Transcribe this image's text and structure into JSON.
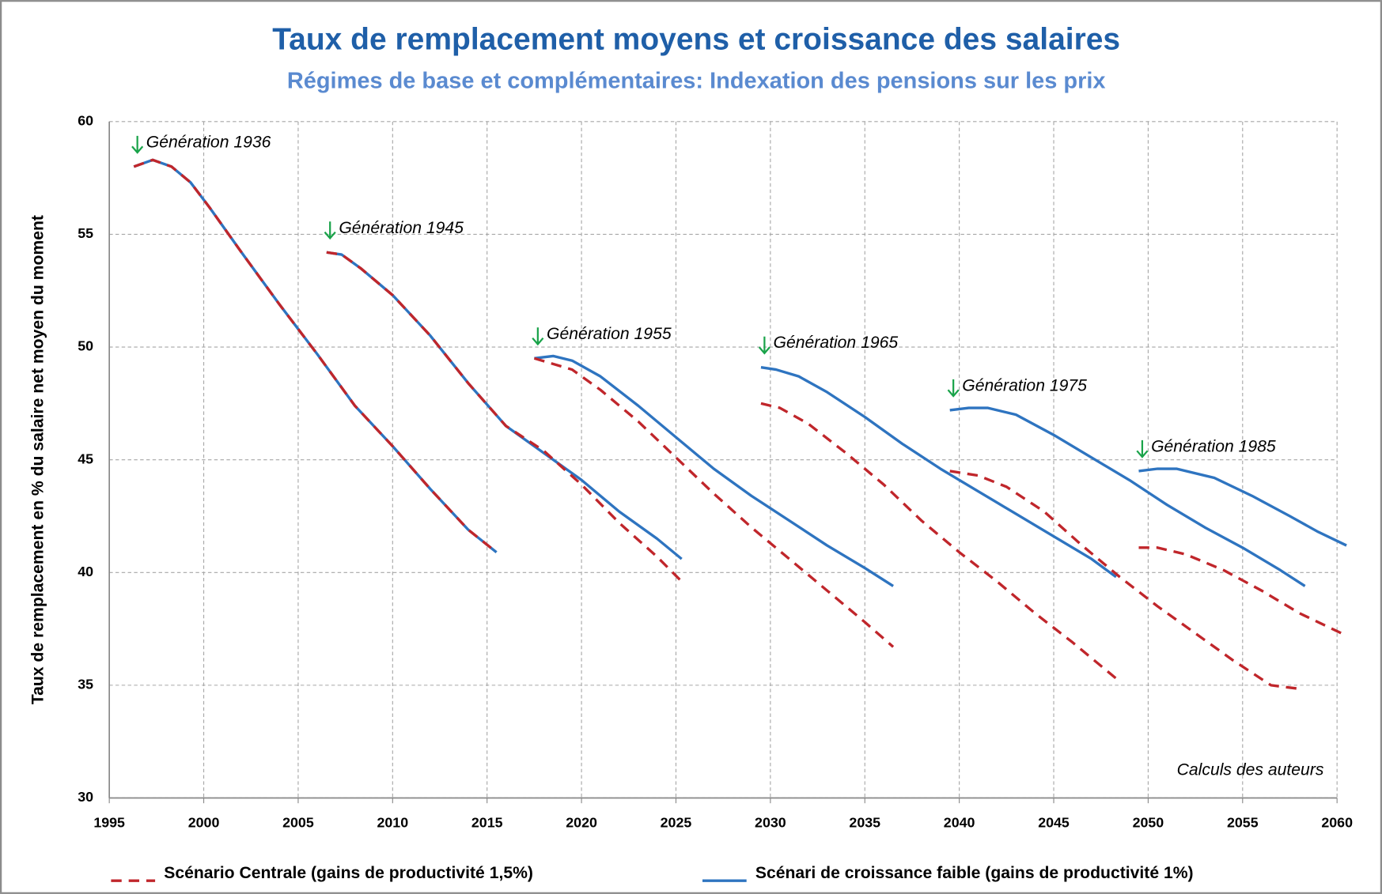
{
  "chart_data": {
    "type": "line",
    "title": "Taux de remplacement moyens et croissance des salaires",
    "subtitle": "Régimes de base et complémentaires:  Indexation des pensions sur les prix",
    "y_label": "Taux de remplacement en % du salaire net moyen du moment",
    "xlim": [
      1995,
      2060
    ],
    "xticks": [
      1995,
      2000,
      2005,
      2010,
      2015,
      2020,
      2025,
      2030,
      2035,
      2040,
      2045,
      2050,
      2055,
      2060
    ],
    "ylim": [
      30,
      60
    ],
    "yticks": [
      30,
      35,
      40,
      45,
      50,
      55,
      60
    ],
    "grid": true,
    "legend": "bottom",
    "series": [
      {
        "name": "Scénario Centrale (gains de productivité 1,5%)",
        "color": "#c0262b",
        "dashed": true,
        "x": [
          1996.3,
          1997.3,
          1998.3,
          1999.3,
          2000.3,
          2002,
          2004,
          2006,
          2008,
          2010,
          2012,
          2014,
          2015.5,
          null,
          2006.5,
          2007.3,
          2008.3,
          2010,
          2012,
          2014,
          2016,
          2018,
          2020,
          2022,
          2024,
          2025.3,
          null,
          2017.5,
          2019.5,
          2021,
          2023,
          2025,
          2027,
          2029,
          2031,
          2033,
          2035,
          2036.5,
          null,
          2029.5,
          2030.5,
          2032,
          2034,
          2036,
          2038,
          2040,
          2042,
          2044,
          2046,
          2048.3,
          null,
          2039.5,
          2041,
          2042.5,
          2044.5,
          2046.5,
          2048.5,
          2050.5,
          2052.5,
          2054.5,
          2056.5,
          2057.9,
          null,
          2049.5,
          2050.5,
          2052,
          2054,
          2056,
          2058,
          2060.5
        ],
        "values": [
          58.0,
          58.3,
          58.0,
          57.3,
          56.2,
          54.2,
          51.9,
          49.7,
          47.4,
          45.6,
          43.7,
          41.9,
          40.9,
          null,
          54.2,
          54.1,
          53.5,
          52.3,
          50.5,
          48.4,
          46.5,
          45.4,
          43.9,
          42.2,
          40.7,
          39.6,
          null,
          49.5,
          49.0,
          48.1,
          46.7,
          45.1,
          43.5,
          42.0,
          40.6,
          39.2,
          37.8,
          36.7,
          null,
          47.5,
          47.3,
          46.6,
          45.3,
          43.9,
          42.3,
          40.9,
          39.6,
          38.2,
          36.9,
          35.3,
          null,
          44.5,
          44.3,
          43.8,
          42.7,
          41.2,
          39.8,
          38.5,
          37.3,
          36.1,
          35.0,
          34.85,
          null,
          41.1,
          41.1,
          40.8,
          40.1,
          39.2,
          38.2,
          37.2
        ]
      },
      {
        "name": "Scénari de croissance faible (gains de productivité 1%)",
        "color": "#2e74c0",
        "dashed": false,
        "x": [
          1996.3,
          1997.3,
          1998.3,
          1999.3,
          2000.3,
          2002,
          2004,
          2006,
          2008,
          2010,
          2012,
          2014,
          2015.5,
          null,
          2006.5,
          2007.3,
          2008.3,
          2010,
          2012,
          2014,
          2016,
          2017.5,
          2020,
          2022,
          2024,
          2025.3,
          null,
          2017.5,
          2018.5,
          2019.5,
          2021,
          2023,
          2025,
          2027,
          2029,
          2031,
          2033,
          2035,
          2036.5,
          null,
          2029.5,
          2030.3,
          2031.5,
          2033,
          2035,
          2037,
          2039,
          2041,
          2043,
          2045,
          2047,
          2048.3,
          null,
          2039.5,
          2040.5,
          2041.5,
          2043,
          2045,
          2047,
          2049,
          2051,
          2053,
          2055,
          2057,
          2058.3,
          null,
          2049.5,
          2050.5,
          2051.5,
          2053.5,
          2055.5,
          2057.5,
          2059,
          2060.5
        ],
        "values": [
          58.0,
          58.3,
          58.0,
          57.3,
          56.2,
          54.2,
          51.9,
          49.7,
          47.4,
          45.6,
          43.7,
          41.9,
          40.9,
          null,
          54.2,
          54.1,
          53.5,
          52.3,
          50.5,
          48.4,
          46.5,
          45.6,
          44.1,
          42.7,
          41.5,
          40.6,
          null,
          49.5,
          49.6,
          49.4,
          48.7,
          47.4,
          46.0,
          44.6,
          43.4,
          42.3,
          41.2,
          40.2,
          39.4,
          null,
          49.1,
          49.0,
          48.7,
          48.0,
          46.9,
          45.7,
          44.6,
          43.6,
          42.6,
          41.6,
          40.6,
          39.8,
          null,
          47.2,
          47.3,
          47.3,
          47.0,
          46.1,
          45.1,
          44.1,
          43.0,
          42.0,
          41.1,
          40.1,
          39.4,
          null,
          44.5,
          44.6,
          44.6,
          44.2,
          43.4,
          42.5,
          41.8,
          41.2
        ]
      }
    ],
    "annotations": [
      "Génération 1936",
      "Génération 1945",
      "Génération 1955",
      "Génération 1965",
      "Génération 1975",
      "Génération 1985"
    ],
    "source": "Calculs des auteurs"
  }
}
